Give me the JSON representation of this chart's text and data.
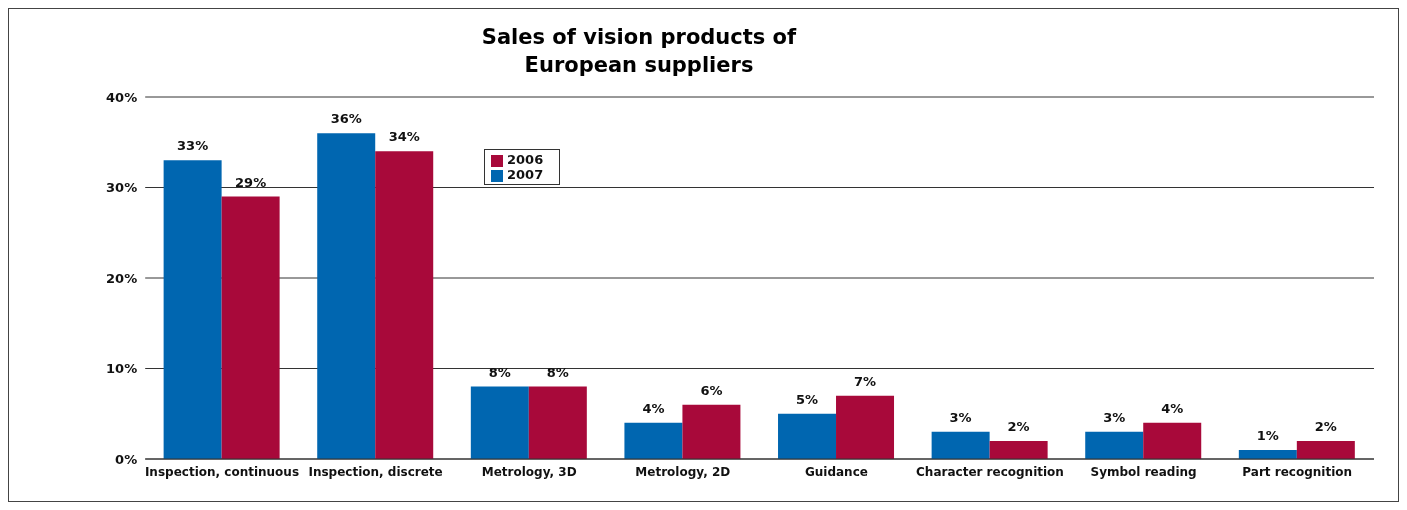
{
  "chart_data": {
    "type": "bar",
    "title": "Sales of vision products of European suppliers",
    "categories": [
      "Inspection, continuous",
      "Inspection, discrete",
      "Metrology, 3D",
      "Metrology, 2D",
      "Guidance",
      "Character recognition",
      "Symbol reading",
      "Part recognition"
    ],
    "series": [
      {
        "name": "2007",
        "color": "#0066b0",
        "values": [
          33,
          36,
          8,
          4,
          5,
          3,
          3,
          1
        ],
        "value_labels": [
          "33%",
          "36%",
          "8%",
          "4%",
          "5%",
          "3%",
          "3%",
          "1%"
        ]
      },
      {
        "name": "2006",
        "color": "#a8093a",
        "values": [
          29,
          34,
          8,
          6,
          7,
          2,
          4,
          2
        ],
        "value_labels": [
          "29%",
          "34%",
          "8%",
          "6%",
          "7%",
          "2%",
          "4%",
          "2%"
        ]
      }
    ],
    "ylim": [
      0,
      40
    ],
    "yticks": [
      {
        "value": 0,
        "label": "0%"
      },
      {
        "value": 10,
        "label": "10%"
      },
      {
        "value": 20,
        "label": "20%"
      },
      {
        "value": 30,
        "label": "30%"
      },
      {
        "value": 40,
        "label": "40%"
      }
    ],
    "grid": "y",
    "legend": "top left"
  }
}
